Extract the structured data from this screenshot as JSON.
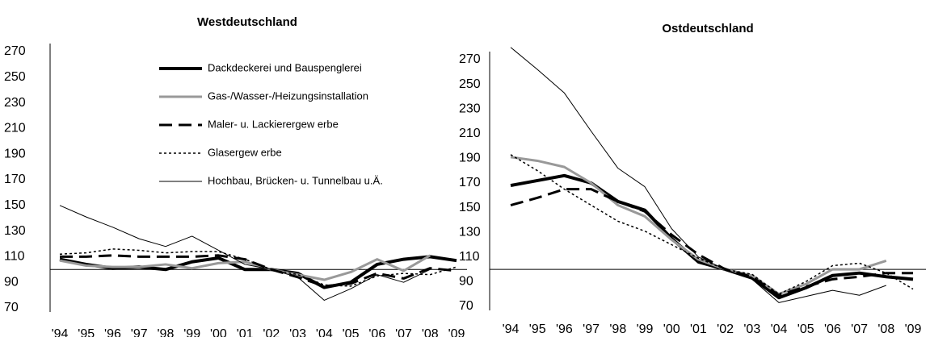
{
  "chart_data": [
    {
      "type": "line",
      "title": "Westdeutschland",
      "categories": [
        "'94",
        "'95",
        "'96",
        "'97",
        "'98",
        "'99",
        "'00",
        "'01",
        "'02",
        "'03",
        "'04",
        "'05",
        "'06",
        "'07",
        "'08",
        "'09"
      ],
      "ylim": [
        70,
        270
      ],
      "yticks": [
        70,
        90,
        110,
        130,
        150,
        170,
        190,
        210,
        230,
        250,
        270
      ],
      "reference_line": 100,
      "legend": true,
      "series": [
        {
          "name": "Dackdeckerei und Bauspenglerei",
          "color": "#000000",
          "style": "solid",
          "width": 4,
          "values": [
            108,
            104,
            101,
            102,
            100,
            106,
            109,
            100,
            100,
            97,
            86,
            90,
            104,
            108,
            110,
            107
          ]
        },
        {
          "name": "Gas-/Wasser-/Heizungsinstallation",
          "color": "#999999",
          "style": "solid",
          "width": 3,
          "values": [
            107,
            103,
            102,
            102,
            104,
            101,
            105,
            106,
            100,
            96,
            92,
            98,
            108,
            99,
            111,
            null
          ]
        },
        {
          "name": "Maler- u. Lackierergew erbe",
          "color": "#000000",
          "style": "dashed",
          "width": 3,
          "values": [
            110,
            110,
            111,
            110,
            110,
            110,
            111,
            108,
            100,
            94,
            87,
            89,
            97,
            93,
            101,
            99
          ]
        },
        {
          "name": "Glasergew erbe",
          "color": "#000000",
          "style": "dotted",
          "width": 1.5,
          "values": [
            112,
            113,
            116,
            115,
            113,
            114,
            114,
            108,
            100,
            96,
            88,
            87,
            95,
            97,
            96,
            102
          ]
        },
        {
          "name": "Hochbau, Brücken- u. Tunnelbau u.Ä.",
          "color": "#000000",
          "style": "solid",
          "width": 1,
          "values": [
            150,
            141,
            133,
            124,
            118,
            126,
            115,
            104,
            100,
            94,
            76,
            85,
            96,
            90,
            100,
            null
          ]
        }
      ]
    },
    {
      "type": "line",
      "title": "Ostdeutschland",
      "categories": [
        "'94",
        "'95",
        "'96",
        "'97",
        "'98",
        "'99",
        "'00",
        "'01",
        "'02",
        "'03",
        "'04",
        "'05",
        "'06",
        "'07",
        "'08",
        "'09"
      ],
      "ylim": [
        70,
        270
      ],
      "yticks": [
        70,
        90,
        110,
        130,
        150,
        170,
        190,
        210,
        230,
        250,
        270
      ],
      "reference_line": 100,
      "legend": false,
      "series": [
        {
          "color": "#000000",
          "style": "solid",
          "width": 4,
          "values": [
            168,
            172,
            176,
            170,
            155,
            148,
            125,
            106,
            100,
            93,
            77,
            85,
            95,
            97,
            94,
            92
          ]
        },
        {
          "color": "#999999",
          "style": "solid",
          "width": 3,
          "values": [
            191,
            188,
            183,
            170,
            152,
            143,
            124,
            108,
            100,
            95,
            80,
            88,
            100,
            100,
            107,
            null
          ]
        },
        {
          "color": "#000000",
          "style": "dashed",
          "width": 3,
          "values": [
            152,
            158,
            165,
            165,
            155,
            147,
            128,
            112,
            100,
            94,
            79,
            86,
            92,
            94,
            97,
            97
          ]
        },
        {
          "color": "#000000",
          "style": "dotted",
          "width": 1.5,
          "values": [
            193,
            180,
            165,
            152,
            139,
            131,
            120,
            109,
            100,
            96,
            80,
            90,
            103,
            105,
            97,
            84
          ]
        },
        {
          "color": "#000000",
          "style": "solid",
          "width": 1,
          "values": [
            280,
            262,
            243,
            212,
            182,
            167,
            133,
            110,
            100,
            92,
            73,
            78,
            83,
            79,
            87,
            null
          ]
        }
      ]
    }
  ]
}
